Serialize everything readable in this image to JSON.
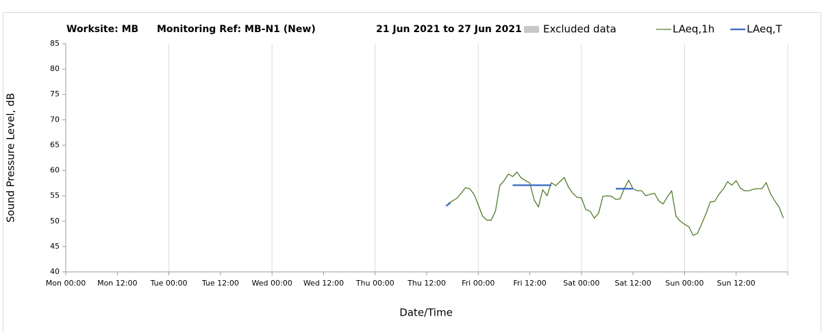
{
  "chart_data": {
    "type": "line",
    "title_parts": [
      "Worksite: MB",
      "Monitoring Ref: MB-N1 (New)",
      "21 Jun 2021 to 27 Jun 2021"
    ],
    "x_label": "Date/Time",
    "y_label": "Sound Pressure Level, dB",
    "xlim": [
      0,
      168
    ],
    "xticks": [
      {
        "value": 0,
        "label": "Mon 00:00"
      },
      {
        "value": 12,
        "label": "Mon 12:00"
      },
      {
        "value": 24,
        "label": "Tue 00:00"
      },
      {
        "value": 36,
        "label": "Tue 12:00"
      },
      {
        "value": 48,
        "label": "Wed 00:00"
      },
      {
        "value": 60,
        "label": "Wed 12:00"
      },
      {
        "value": 72,
        "label": "Thu 00:00"
      },
      {
        "value": 84,
        "label": "Thu 12:00"
      },
      {
        "value": 96,
        "label": "Fri 00:00"
      },
      {
        "value": 108,
        "label": "Fri 12:00"
      },
      {
        "value": 120,
        "label": "Sat 00:00"
      },
      {
        "value": 132,
        "label": "Sat 12:00"
      },
      {
        "value": 144,
        "label": "Sun 00:00"
      },
      {
        "value": 156,
        "label": "Sun 12:00"
      }
    ],
    "ylim": [
      40,
      85
    ],
    "yticks": [
      40,
      45,
      50,
      55,
      60,
      65,
      70,
      75,
      80,
      85
    ],
    "excluded": {
      "name": "Excluded data",
      "color": "#c8c8c8"
    },
    "series": [
      {
        "name": "LAeq,1h",
        "color": "#4f7a28",
        "width": 1.3,
        "x": [
          89,
          90,
          91,
          92,
          93,
          94,
          95,
          96,
          97,
          98,
          99,
          100,
          101,
          102,
          103,
          104,
          105,
          106,
          107,
          108,
          109,
          110,
          111,
          112,
          113,
          114,
          115,
          116,
          117,
          118,
          119,
          120,
          121,
          122,
          123,
          124,
          125,
          126,
          127,
          128,
          129,
          130,
          131,
          132,
          133,
          134,
          135,
          136,
          137,
          138,
          139,
          140,
          141,
          142,
          143,
          144,
          145,
          146,
          147,
          148,
          149,
          150,
          151,
          152,
          153,
          154,
          155,
          156,
          157,
          158,
          159,
          160,
          161,
          162,
          163,
          164,
          165,
          166,
          167
        ],
        "values": [
          53.5,
          54,
          54.5,
          55.5,
          56.6,
          56.4,
          55.3,
          53.2,
          51,
          50.2,
          50.2,
          52,
          57,
          58,
          59.3,
          58.8,
          59.7,
          58.5,
          58,
          57.5,
          54.2,
          52.8,
          56.2,
          55,
          57.6,
          57,
          57.8,
          58.6,
          56.7,
          55.5,
          54.7,
          54.6,
          52.3,
          52,
          50.6,
          51.6,
          54.9,
          55,
          54.9,
          54.3,
          54.4,
          56.5,
          58.1,
          56.4,
          56,
          56,
          55,
          55.3,
          55.5,
          54,
          53.4,
          54.8,
          56,
          51,
          50,
          49.4,
          48.9,
          47.2,
          47.6,
          49.5,
          51.5,
          53.8,
          53.9,
          55.3,
          56.3,
          57.8,
          57.1,
          58,
          56.5,
          56,
          56,
          56.3,
          56.4,
          56.4,
          57.6,
          55.4,
          54,
          52.8,
          50.6
        ]
      },
      {
        "name": "LAeq,T",
        "color": "#4472c4",
        "width": 2.5,
        "x": [
          88.5,
          89.5,
          null,
          104,
          113,
          null,
          128,
          132
        ],
        "values": [
          53,
          53.6,
          null,
          57.1,
          57.1,
          null,
          56.4,
          56.4
        ]
      }
    ]
  }
}
